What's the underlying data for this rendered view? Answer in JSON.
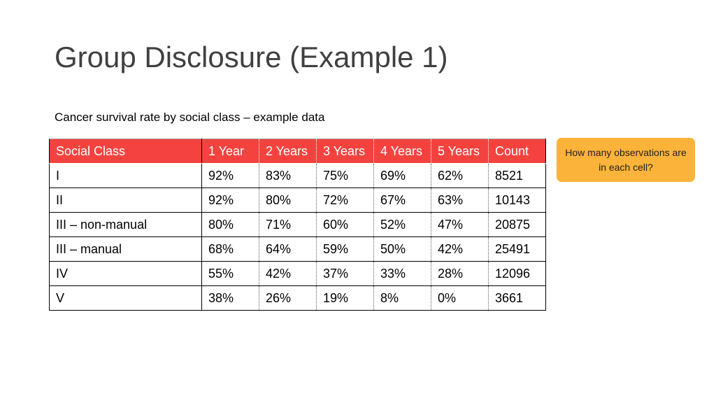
{
  "slide": {
    "title": "Group Disclosure (Example 1)",
    "subtitle": "Cancer survival rate by social class – example data"
  },
  "table": {
    "headers": [
      "Social Class",
      "1 Year",
      "2 Years",
      "3 Years",
      "4 Years",
      "5 Years",
      "Count"
    ],
    "rows": [
      [
        "I",
        "92%",
        "83%",
        "75%",
        "69%",
        "62%",
        "8521"
      ],
      [
        "II",
        "92%",
        "80%",
        "72%",
        "67%",
        "63%",
        "10143"
      ],
      [
        "III – non-manual",
        "80%",
        "71%",
        "60%",
        "52%",
        "47%",
        "20875"
      ],
      [
        "III – manual",
        "68%",
        "64%",
        "59%",
        "50%",
        "42%",
        "25491"
      ],
      [
        "IV",
        "55%",
        "42%",
        "37%",
        "33%",
        "28%",
        "12096"
      ],
      [
        "V",
        "38%",
        "26%",
        "19%",
        "8%",
        "0%",
        "3661"
      ]
    ]
  },
  "callout": {
    "text": "How many observations are in each cell?"
  },
  "colors": {
    "header_background": "#f4433f",
    "callout_background": "#fbb33a",
    "title_text": "#404040"
  },
  "chart_data": {
    "type": "table",
    "title": "Cancer survival rate by social class – example data",
    "columns": [
      "Social Class",
      "1 Year",
      "2 Years",
      "3 Years",
      "4 Years",
      "5 Years",
      "Count"
    ],
    "rows": [
      [
        "I",
        92,
        83,
        75,
        69,
        62,
        8521
      ],
      [
        "II",
        92,
        80,
        72,
        67,
        63,
        10143
      ],
      [
        "III – non-manual",
        80,
        71,
        60,
        52,
        47,
        20875
      ],
      [
        "III – manual",
        68,
        64,
        59,
        50,
        42,
        25491
      ],
      [
        "IV",
        55,
        42,
        37,
        33,
        28,
        12096
      ],
      [
        "V",
        38,
        26,
        19,
        8,
        0,
        3661
      ]
    ]
  }
}
